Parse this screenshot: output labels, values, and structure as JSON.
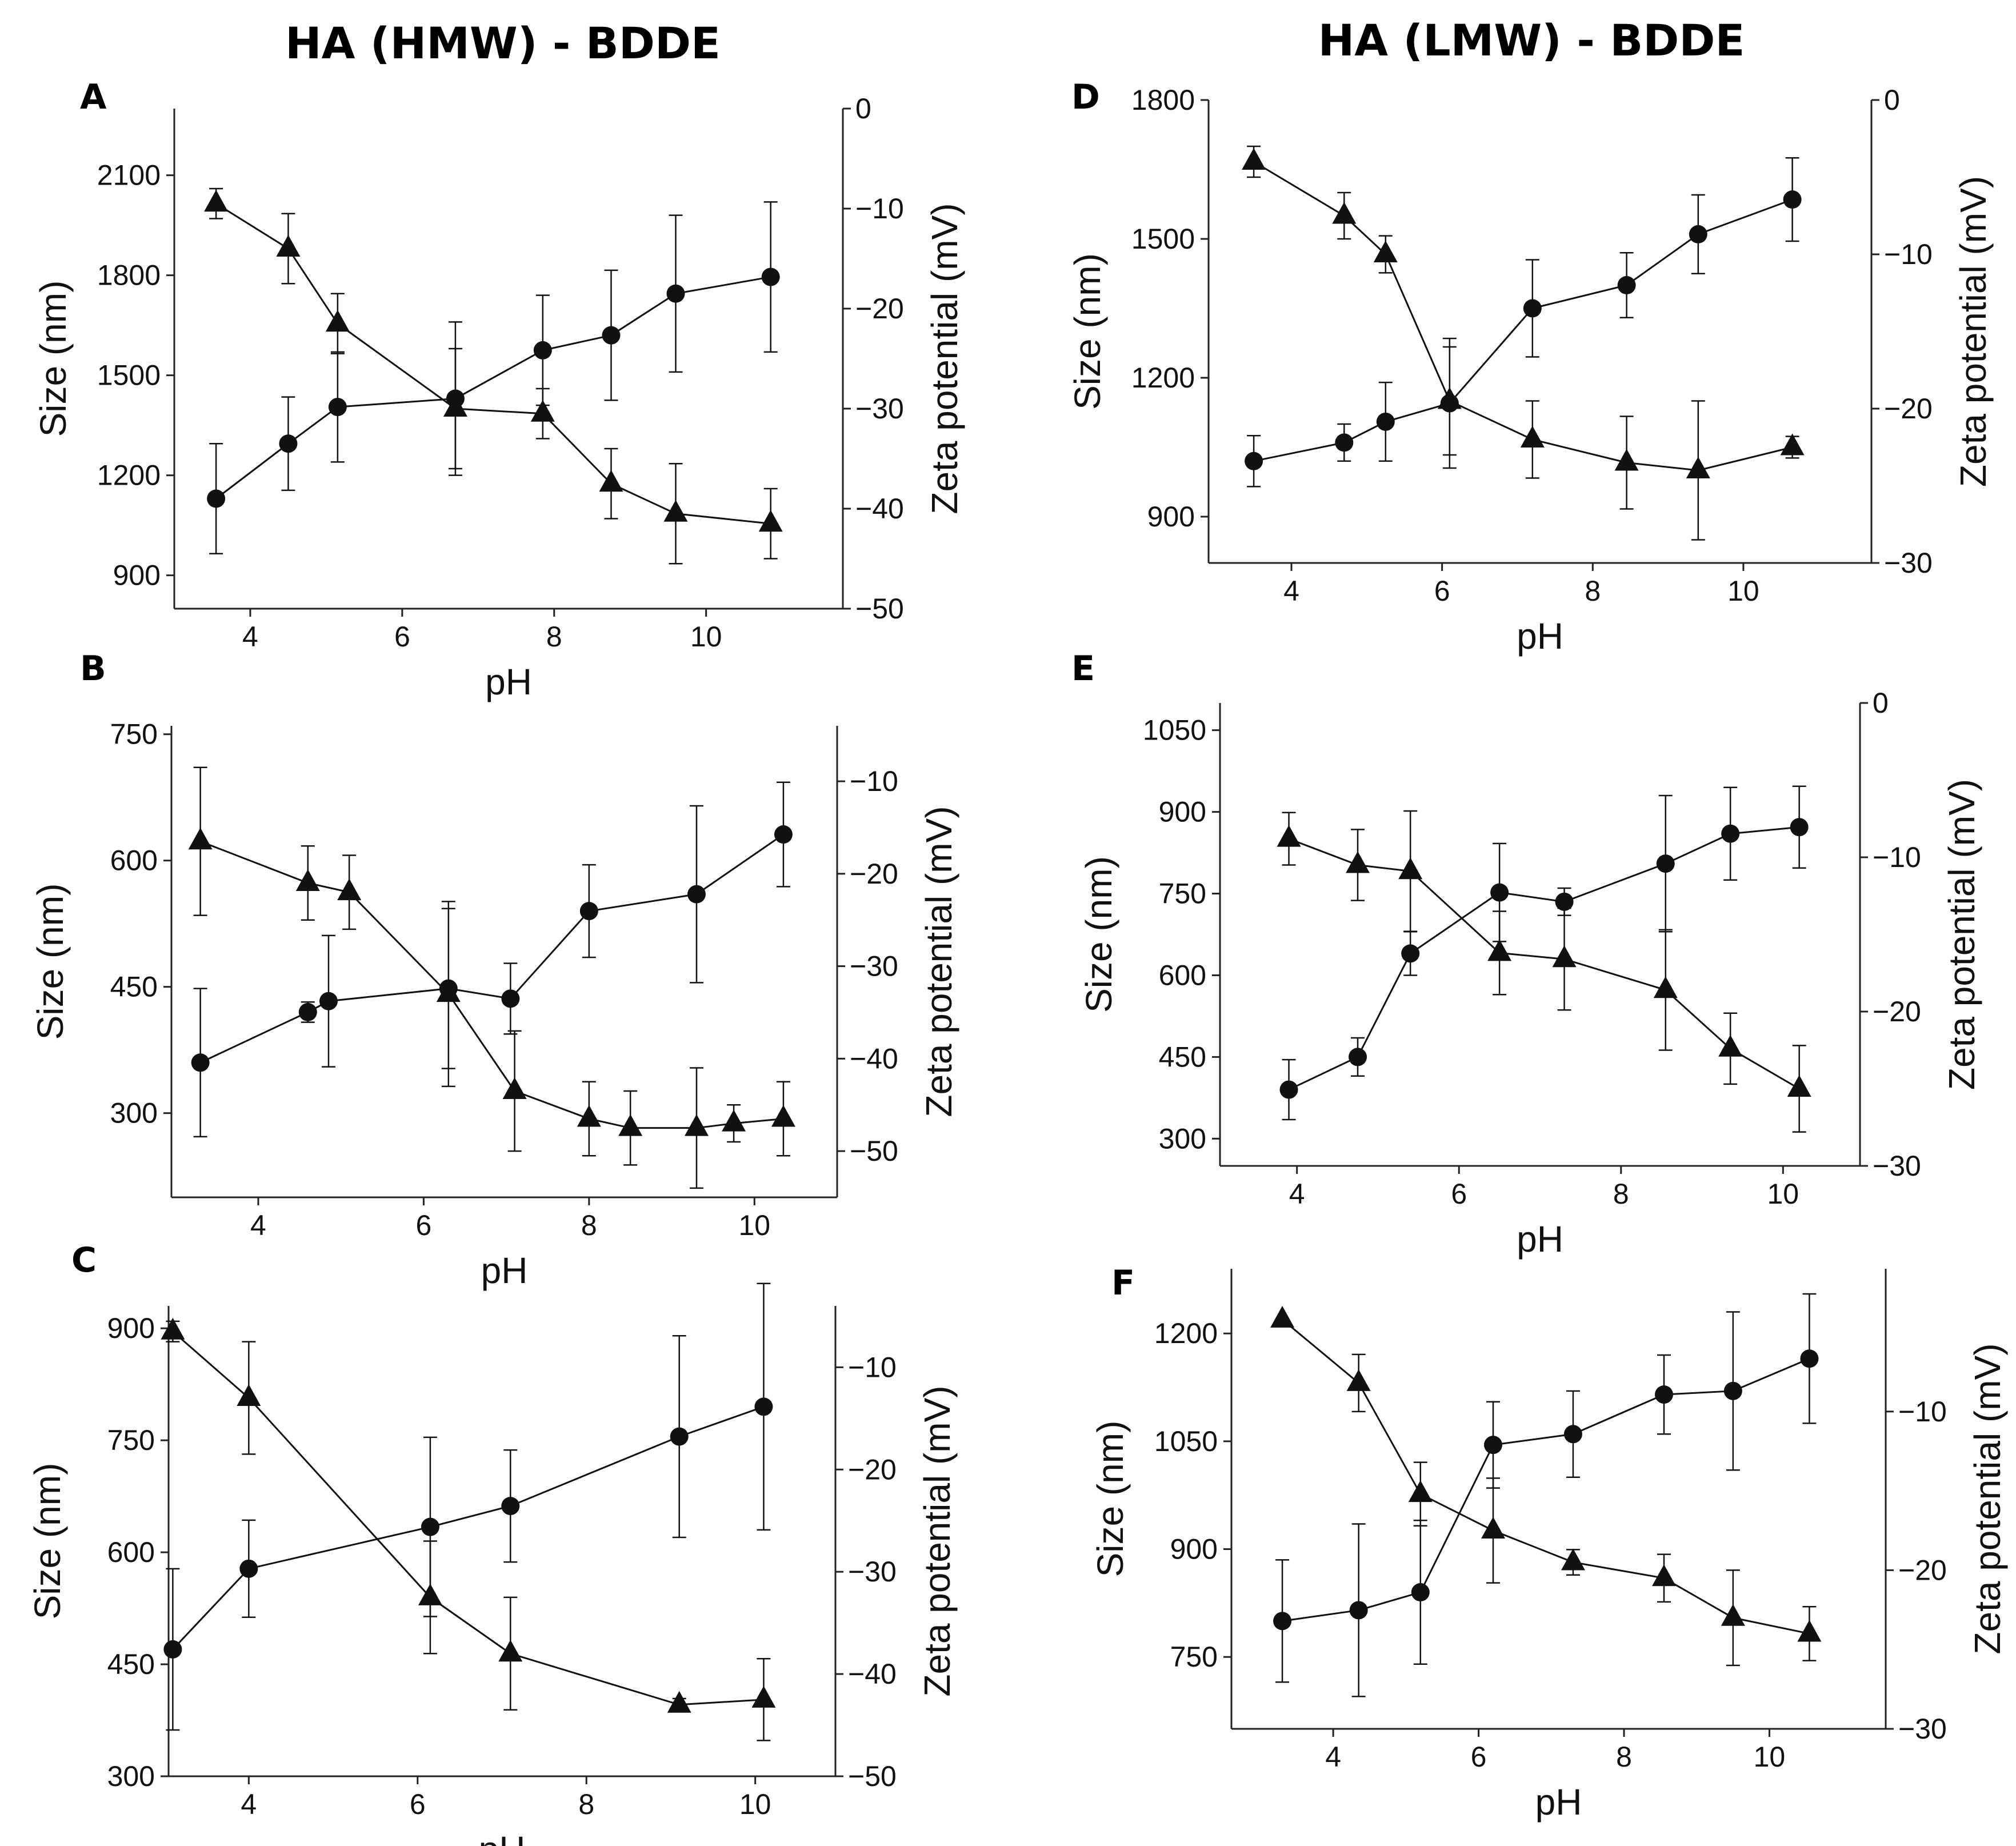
{
  "column_titles": [
    "HA (HMW) - BDDE",
    "HA (LMW) - BDDE"
  ],
  "chart_data": [
    {
      "panel": "A",
      "type": "scatter",
      "xlabel": "pH",
      "ylabel": "Size (nm)",
      "y2label": "Zeta potential (mV)",
      "xlim": [
        3,
        11.8
      ],
      "xticks": [
        4,
        6,
        8,
        10
      ],
      "ylim": [
        800,
        2300
      ],
      "yticks": [
        900,
        1200,
        1500,
        1800,
        2100
      ],
      "y2lim": [
        -50,
        0
      ],
      "y2ticks": [
        -50,
        -40,
        -30,
        -20,
        -10,
        0
      ],
      "series": [
        {
          "marker": "circle",
          "axis": "left",
          "x": [
            3.55,
            4.5,
            5.15,
            6.7,
            7.85,
            8.75,
            9.6,
            10.85
          ],
          "y": [
            1130,
            1295,
            1405,
            1430,
            1575,
            1620,
            1745,
            1795
          ],
          "err": [
            165,
            140,
            165,
            230,
            165,
            195,
            235,
            225
          ]
        },
        {
          "marker": "triangle",
          "axis": "right",
          "x": [
            3.55,
            4.5,
            5.15,
            6.7,
            7.85,
            8.75,
            9.6,
            10.85
          ],
          "y": [
            -9.5,
            -14,
            -21.5,
            -30,
            -30.5,
            -37.5,
            -40.5,
            -41.5
          ],
          "err": [
            1.5,
            3.5,
            3,
            6,
            2.5,
            3.5,
            5,
            3.5
          ]
        }
      ]
    },
    {
      "panel": "B",
      "type": "scatter",
      "xlabel": "pH",
      "ylabel": "Size (nm)",
      "y2label": "Zeta potential (mV)",
      "xlim": [
        2.95,
        11
      ],
      "xticks": [
        4,
        6,
        8,
        10
      ],
      "ylim": [
        200,
        760
      ],
      "yticks": [
        300,
        450,
        600,
        750
      ],
      "y2lim": [
        -55,
        -4
      ],
      "y2ticks": [
        -50,
        -40,
        -30,
        -20,
        -10
      ],
      "series": [
        {
          "marker": "circle",
          "axis": "left",
          "x": [
            3.3,
            4.6,
            4.85,
            6.3,
            7.05,
            8.0,
            9.3,
            10.35
          ],
          "y": [
            360,
            420,
            433,
            448,
            436,
            540,
            560,
            631
          ],
          "err": [
            88,
            12,
            78,
            95,
            42,
            55,
            105,
            62
          ]
        },
        {
          "marker": "triangle",
          "axis": "right",
          "x": [
            3.3,
            4.6,
            5.1,
            6.3,
            7.1,
            8.0,
            8.5,
            9.3,
            9.75,
            10.35
          ],
          "y": [
            -16.5,
            -21,
            -22,
            -33,
            -43.5,
            -46.5,
            -47.5,
            -47.5,
            -47,
            -46.5
          ],
          "err": [
            8,
            4,
            4,
            10,
            6.5,
            4,
            4,
            6.5,
            2,
            4
          ]
        }
      ]
    },
    {
      "panel": "C",
      "type": "scatter",
      "xlabel": "pH",
      "ylabel": "Size (nm)",
      "y2label": "Zeta potential (mV)",
      "xlim": [
        3.05,
        10.95
      ],
      "xticks": [
        4,
        6,
        8,
        10
      ],
      "ylim": [
        300,
        930
      ],
      "yticks": [
        300,
        450,
        600,
        750,
        900
      ],
      "y2lim": [
        -50,
        -4
      ],
      "y2ticks": [
        -50,
        -40,
        -30,
        -20,
        -10
      ],
      "series": [
        {
          "marker": "circle",
          "axis": "left",
          "x": [
            3.1,
            4.0,
            6.15,
            7.1,
            9.1,
            10.1
          ],
          "y": [
            470,
            578,
            634,
            662,
            755,
            795
          ],
          "err": [
            108,
            65,
            120,
            75,
            135,
            165
          ]
        },
        {
          "marker": "triangle",
          "axis": "right",
          "x": [
            3.1,
            4.0,
            6.15,
            7.1,
            9.1,
            10.1
          ],
          "y": [
            -6.5,
            -13,
            -32.5,
            -38,
            -43,
            -42.5
          ],
          "err": [
            1,
            5.5,
            5.5,
            5.5,
            0.6,
            4
          ]
        }
      ]
    },
    {
      "panel": "D",
      "type": "scatter",
      "xlabel": "pH",
      "ylabel": "Size (nm)",
      "y2label": "Zeta potential (mV)",
      "xlim": [
        2.9,
        11.7
      ],
      "xticks": [
        4,
        6,
        8,
        10
      ],
      "ylim": [
        800,
        1800
      ],
      "yticks": [
        900,
        1200,
        1500,
        1800
      ],
      "y2lim": [
        -30,
        0
      ],
      "y2ticks": [
        -30,
        -20,
        -10,
        0
      ],
      "series": [
        {
          "marker": "circle",
          "axis": "left",
          "x": [
            3.5,
            4.7,
            5.25,
            6.1,
            7.2,
            8.45,
            9.4,
            10.65
          ],
          "y": [
            1020,
            1060,
            1105,
            1145,
            1350,
            1400,
            1510,
            1585
          ],
          "err": [
            55,
            40,
            85,
            140,
            105,
            70,
            85,
            90
          ]
        },
        {
          "marker": "triangle",
          "axis": "right",
          "x": [
            3.5,
            4.7,
            5.25,
            6.1,
            7.2,
            8.45,
            9.4,
            10.65
          ],
          "y": [
            -4,
            -7.5,
            -10,
            -19.5,
            -22,
            -23.5,
            -24,
            -22.5
          ],
          "err": [
            1,
            1.5,
            1.2,
            3.5,
            2.5,
            3,
            4.5,
            0.7
          ]
        }
      ]
    },
    {
      "panel": "E",
      "type": "scatter",
      "xlabel": "pH",
      "ylabel": "Size (nm)",
      "y2label": "Zeta potential (mV)",
      "xlim": [
        3.05,
        10.95
      ],
      "xticks": [
        4,
        6,
        8,
        10
      ],
      "ylim": [
        250,
        1100
      ],
      "yticks": [
        300,
        450,
        600,
        750,
        900,
        1050
      ],
      "y2lim": [
        -30,
        0
      ],
      "y2ticks": [
        -30,
        -20,
        -10,
        0
      ],
      "series": [
        {
          "marker": "circle",
          "axis": "left",
          "x": [
            3.9,
            4.75,
            5.4,
            6.5,
            7.3,
            8.55,
            9.35,
            10.2
          ],
          "y": [
            390,
            450,
            640,
            752,
            735,
            805,
            860,
            872
          ],
          "err": [
            55,
            35,
            40,
            90,
            25,
            125,
            85,
            75
          ]
        },
        {
          "marker": "triangle",
          "axis": "right",
          "x": [
            3.9,
            4.75,
            5.4,
            6.5,
            7.3,
            8.55,
            9.35,
            10.2
          ],
          "y": [
            -8.8,
            -10.5,
            -10.9,
            -16.2,
            -16.6,
            -18.6,
            -22.4,
            -25
          ],
          "err": [
            1.7,
            2.3,
            3.9,
            2.7,
            3.3,
            3.9,
            2.3,
            2.8
          ]
        }
      ]
    },
    {
      "panel": "F",
      "type": "scatter",
      "xlabel": "pH",
      "ylabel": "Size (nm)",
      "y2label": "Zeta potential (mV)",
      "xlim": [
        2.6,
        11.6
      ],
      "xticks": [
        4,
        6,
        8,
        10
      ],
      "ylim": [
        650,
        1290
      ],
      "yticks": [
        750,
        900,
        1050,
        1200
      ],
      "y2lim": [
        -30,
        -1
      ],
      "y2ticks": [
        -30,
        -20,
        -10
      ],
      "series": [
        {
          "marker": "circle",
          "axis": "left",
          "x": [
            3.3,
            4.35,
            5.2,
            6.2,
            7.3,
            8.55,
            9.5,
            10.55
          ],
          "y": [
            800,
            815,
            840,
            1045,
            1060,
            1115,
            1120,
            1165
          ],
          "err": [
            85,
            120,
            100,
            60,
            60,
            55,
            110,
            90
          ]
        },
        {
          "marker": "triangle",
          "axis": "right",
          "x": [
            3.3,
            4.35,
            5.2,
            6.2,
            7.3,
            8.55,
            9.5,
            10.55
          ],
          "y": [
            -4.2,
            -8.2,
            -15.2,
            -17.5,
            -19.5,
            -20.5,
            -23,
            -24
          ]
        },
        {
          "marker": "triangle-err",
          "axis": "right",
          "x": [
            4.35,
            5.2,
            6.2,
            7.3,
            8.55,
            9.5,
            10.55
          ],
          "y": [
            -8.2,
            -15.2,
            -17.5,
            -19.5,
            -20.5,
            -23,
            -24
          ],
          "err": [
            1.8,
            2,
            3.3,
            0.8,
            1.5,
            3,
            1.7
          ]
        }
      ]
    }
  ]
}
